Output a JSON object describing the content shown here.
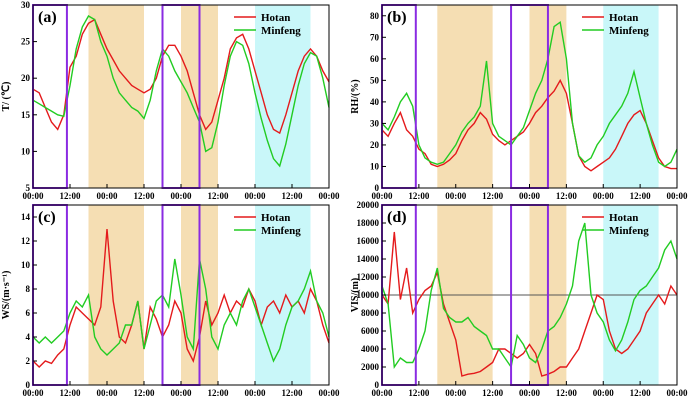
{
  "colors": {
    "hotan": "#e41a1c",
    "minfeng": "#22cc22",
    "orange_band": "#f5deb3",
    "cyan_band": "#c9f7f9",
    "purple_box": "#8a2be2"
  },
  "chart_data": [
    {
      "type": "line",
      "panel_label": "(a)",
      "ylabel": "T/ (℃)",
      "ylim": [
        5,
        30
      ],
      "yticks": [
        5,
        10,
        15,
        20,
        25,
        30
      ],
      "xticks": [
        "00:00",
        "12:00",
        "00:00",
        "12:00",
        "00:00",
        "12:00",
        "00:00",
        "12:00",
        "00:00"
      ],
      "xlim": [
        0,
        96
      ],
      "shaded_orange": [
        [
          18,
          36
        ],
        [
          48,
          60
        ]
      ],
      "shaded_cyan": [
        [
          72,
          90
        ]
      ],
      "purple_boxes": [
        [
          0,
          11
        ],
        [
          42,
          54
        ]
      ],
      "series": [
        {
          "name": "Hotan",
          "x": [
            0,
            2,
            4,
            6,
            8,
            10,
            12,
            14,
            16,
            18,
            20,
            22,
            24,
            26,
            28,
            30,
            32,
            34,
            36,
            38,
            40,
            42,
            44,
            46,
            48,
            50,
            52,
            54,
            56,
            58,
            60,
            62,
            64,
            66,
            68,
            70,
            72,
            74,
            76,
            78,
            80,
            82,
            84,
            86,
            88,
            90,
            92,
            94,
            96
          ],
          "y": [
            18.5,
            18,
            16,
            14,
            13,
            15,
            21.5,
            23,
            26,
            27.5,
            28,
            26,
            24,
            22.5,
            21,
            20,
            19,
            18.5,
            18,
            18.5,
            20,
            23,
            24.5,
            24.5,
            23,
            21,
            18,
            15,
            13,
            14,
            17,
            20,
            24,
            25.5,
            26,
            24,
            21,
            18,
            15,
            13,
            12.5,
            15,
            18,
            21,
            23,
            24,
            23,
            21,
            19.5
          ]
        },
        {
          "name": "Minfeng",
          "x": [
            0,
            2,
            4,
            6,
            8,
            10,
            12,
            14,
            16,
            18,
            20,
            22,
            24,
            26,
            28,
            30,
            32,
            34,
            36,
            38,
            40,
            42,
            44,
            46,
            48,
            50,
            52,
            54,
            56,
            58,
            60,
            62,
            64,
            66,
            68,
            70,
            72,
            74,
            76,
            78,
            80,
            82,
            84,
            86,
            88,
            90,
            92,
            94,
            96
          ],
          "y": [
            17,
            16.5,
            16,
            15.5,
            15,
            14.8,
            19,
            24,
            27,
            28.5,
            28,
            25,
            23,
            20,
            18,
            17,
            16,
            15.5,
            14.5,
            17,
            21,
            24,
            23,
            21,
            19.5,
            18,
            16,
            14,
            10,
            10.5,
            14,
            19,
            23,
            25,
            24.5,
            22,
            18,
            14.5,
            11.5,
            9,
            8,
            11,
            15,
            19,
            22,
            23.5,
            23,
            20,
            16
          ]
        }
      ]
    },
    {
      "type": "line",
      "panel_label": "(b)",
      "ylabel": "RH/(%)",
      "ylim": [
        0,
        85
      ],
      "yticks": [
        0,
        10,
        20,
        30,
        40,
        50,
        60,
        70,
        80
      ],
      "xticks": [
        "00:00",
        "12:00",
        "00:00",
        "12:00",
        "00:00",
        "12:00",
        "00:00",
        "12:00",
        "00:00"
      ],
      "xlim": [
        0,
        96
      ],
      "shaded_orange": [
        [
          18,
          36
        ],
        [
          48,
          60
        ]
      ],
      "shaded_cyan": [
        [
          72,
          90
        ]
      ],
      "purple_boxes": [
        [
          0,
          11
        ],
        [
          42,
          54
        ]
      ],
      "series": [
        {
          "name": "Hotan",
          "x": [
            0,
            2,
            4,
            6,
            8,
            10,
            12,
            14,
            16,
            18,
            20,
            22,
            24,
            26,
            28,
            30,
            32,
            34,
            36,
            38,
            40,
            42,
            44,
            46,
            48,
            50,
            52,
            54,
            56,
            58,
            60,
            62,
            64,
            66,
            68,
            70,
            72,
            74,
            76,
            78,
            80,
            82,
            84,
            86,
            88,
            90,
            92,
            94,
            96
          ],
          "y": [
            27,
            24,
            30,
            35,
            27,
            24,
            18,
            16,
            11,
            10,
            11,
            13,
            16,
            22,
            27,
            30,
            35,
            32,
            25,
            22,
            20,
            22,
            24,
            26,
            30,
            35,
            38,
            42,
            45,
            50,
            44,
            30,
            15,
            10,
            8,
            10,
            12,
            14,
            18,
            24,
            30,
            34,
            36,
            30,
            22,
            14,
            10,
            9,
            9
          ]
        },
        {
          "name": "Minfeng",
          "x": [
            0,
            2,
            4,
            6,
            8,
            10,
            12,
            14,
            16,
            18,
            20,
            22,
            24,
            26,
            28,
            30,
            32,
            34,
            36,
            38,
            40,
            42,
            44,
            46,
            48,
            50,
            52,
            54,
            56,
            58,
            60,
            62,
            64,
            66,
            68,
            70,
            72,
            74,
            76,
            78,
            80,
            82,
            84,
            86,
            88,
            90,
            92,
            94,
            96
          ],
          "y": [
            30,
            27,
            33,
            40,
            44,
            38,
            20,
            14,
            12,
            11,
            12,
            16,
            20,
            26,
            30,
            33,
            38,
            59,
            30,
            24,
            22,
            20,
            24,
            28,
            36,
            44,
            50,
            60,
            75,
            77,
            60,
            30,
            15,
            12,
            14,
            20,
            24,
            30,
            34,
            38,
            44,
            54,
            42,
            30,
            20,
            12,
            10,
            12,
            18
          ]
        }
      ]
    },
    {
      "type": "line",
      "panel_label": "(c)",
      "ylabel": "WS/(m·s⁻¹)",
      "ylim": [
        0,
        15
      ],
      "yticks": [
        0,
        2,
        4,
        6,
        8,
        10,
        12,
        14
      ],
      "xticks": [
        "00:00",
        "12:00",
        "00:00",
        "12:00",
        "00:00",
        "12:00",
        "00:00",
        "12:00",
        "00:00"
      ],
      "xlim": [
        0,
        96
      ],
      "shaded_orange": [
        [
          18,
          36
        ],
        [
          48,
          60
        ]
      ],
      "shaded_cyan": [
        [
          72,
          90
        ]
      ],
      "purple_boxes": [
        [
          0,
          11
        ],
        [
          42,
          54
        ]
      ],
      "series": [
        {
          "name": "Hotan",
          "x": [
            0,
            2,
            4,
            6,
            8,
            10,
            12,
            14,
            16,
            18,
            20,
            22,
            24,
            26,
            28,
            30,
            32,
            34,
            36,
            38,
            40,
            42,
            44,
            46,
            48,
            50,
            52,
            54,
            56,
            58,
            60,
            62,
            64,
            66,
            68,
            70,
            72,
            74,
            76,
            78,
            80,
            82,
            84,
            86,
            88,
            90,
            92,
            94,
            96
          ],
          "y": [
            2,
            1.5,
            2,
            1.8,
            2.5,
            3,
            5,
            6.5,
            6,
            5.5,
            5,
            6.5,
            13,
            7,
            4,
            3.5,
            5,
            7,
            3,
            6.5,
            5.5,
            4,
            5,
            7,
            6,
            3,
            2,
            4,
            7,
            5,
            6,
            7.5,
            6,
            7,
            6.5,
            8,
            7,
            5,
            6.5,
            7,
            6,
            7.5,
            6.5,
            7,
            6,
            8,
            7,
            5,
            3.5
          ]
        },
        {
          "name": "Minfeng",
          "x": [
            0,
            2,
            4,
            6,
            8,
            10,
            12,
            14,
            16,
            18,
            20,
            22,
            24,
            26,
            28,
            30,
            32,
            34,
            36,
            38,
            40,
            42,
            44,
            46,
            48,
            50,
            52,
            54,
            56,
            58,
            60,
            62,
            64,
            66,
            68,
            70,
            72,
            74,
            76,
            78,
            80,
            82,
            84,
            86,
            88,
            90,
            92,
            94,
            96
          ],
          "y": [
            4,
            3.5,
            4,
            3.5,
            4,
            4.5,
            6,
            7,
            6.5,
            7.5,
            4,
            3,
            2.5,
            3,
            3.5,
            5,
            5,
            7,
            3,
            5,
            7,
            7.5,
            6.5,
            10.5,
            7.5,
            4,
            3,
            10.5,
            8,
            4,
            3,
            5,
            6,
            5,
            7,
            8,
            6.5,
            5,
            3.5,
            2,
            3,
            5,
            6.5,
            7,
            8,
            9.5,
            7,
            6,
            4
          ]
        }
      ]
    },
    {
      "type": "line",
      "panel_label": "(d)",
      "ylabel": "VIS/(m)",
      "ylim": [
        0,
        20000
      ],
      "yticks": [
        0,
        2000,
        4000,
        6000,
        8000,
        10000,
        12000,
        14000,
        16000,
        18000,
        20000
      ],
      "reference_line": 10000,
      "xticks": [
        "00:00",
        "12:00",
        "00:00",
        "12:00",
        "00:00",
        "12:00",
        "00:00",
        "12:00",
        "00:00"
      ],
      "xlim": [
        0,
        96
      ],
      "shaded_orange": [
        [
          18,
          36
        ],
        [
          48,
          60
        ]
      ],
      "shaded_cyan": [
        [
          72,
          90
        ]
      ],
      "purple_boxes": [
        [
          0,
          11
        ],
        [
          42,
          54
        ]
      ],
      "series": [
        {
          "name": "Hotan",
          "x": [
            0,
            2,
            4,
            6,
            8,
            10,
            12,
            14,
            16,
            18,
            20,
            22,
            24,
            26,
            28,
            30,
            32,
            34,
            36,
            38,
            40,
            42,
            44,
            46,
            48,
            50,
            52,
            54,
            56,
            58,
            60,
            62,
            64,
            66,
            68,
            70,
            72,
            74,
            76,
            78,
            80,
            82,
            84,
            86,
            88,
            90,
            92,
            94,
            96
          ],
          "y": [
            10000,
            9000,
            17000,
            9500,
            13000,
            8000,
            9500,
            10500,
            11000,
            12500,
            9000,
            7000,
            5000,
            1000,
            1200,
            1300,
            1500,
            2000,
            2500,
            4000,
            4000,
            3500,
            3000,
            3500,
            4500,
            3500,
            1000,
            1200,
            1500,
            2000,
            2000,
            3000,
            4000,
            6000,
            8000,
            10000,
            9500,
            6000,
            4000,
            3500,
            4000,
            5000,
            6000,
            8000,
            9000,
            10000,
            9000,
            11000,
            10000
          ]
        },
        {
          "name": "Minfeng",
          "x": [
            0,
            2,
            4,
            6,
            8,
            10,
            12,
            14,
            16,
            18,
            20,
            22,
            24,
            26,
            28,
            30,
            32,
            34,
            36,
            38,
            40,
            42,
            44,
            46,
            48,
            50,
            52,
            54,
            56,
            58,
            60,
            62,
            64,
            66,
            68,
            70,
            72,
            74,
            76,
            78,
            80,
            82,
            84,
            86,
            88,
            90,
            92,
            94,
            96
          ],
          "y": [
            11000,
            9000,
            2000,
            3000,
            2500,
            2500,
            4000,
            6000,
            10500,
            13000,
            8500,
            7500,
            7000,
            7000,
            7500,
            6500,
            6000,
            5500,
            4000,
            4000,
            3000,
            2000,
            5500,
            4500,
            3000,
            2500,
            4000,
            6000,
            6500,
            7500,
            9000,
            11000,
            16000,
            18000,
            10000,
            8000,
            7000,
            5000,
            3800,
            5000,
            7000,
            9500,
            10500,
            11000,
            12000,
            13000,
            15000,
            16000,
            14000
          ]
        }
      ]
    }
  ],
  "legend": [
    "Hotan",
    "Minfeng"
  ]
}
